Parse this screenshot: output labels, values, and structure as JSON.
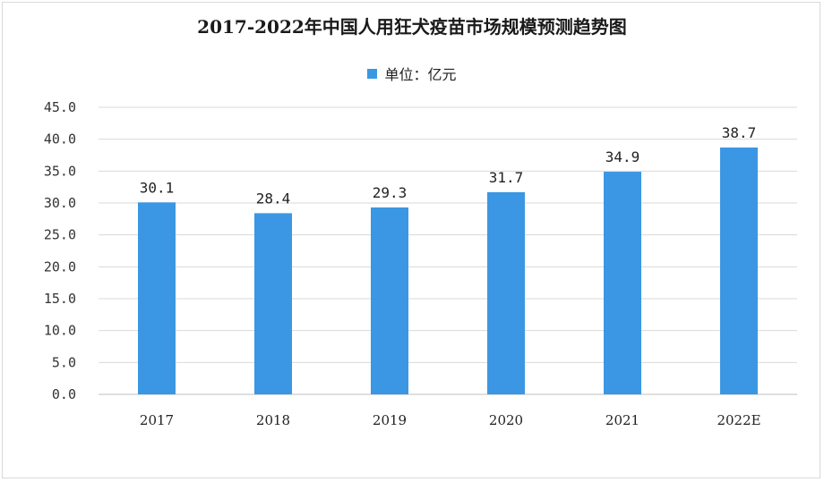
{
  "chart_data": {
    "type": "bar",
    "title": "2017-2022年中国人用狂犬疫苗市场规模预测趋势图",
    "legend": {
      "label": "单位：亿元",
      "position": "top"
    },
    "categories": [
      "2017",
      "2018",
      "2019",
      "2020",
      "2021",
      "2022E"
    ],
    "series": [
      {
        "name": "单位：亿元",
        "values": [
          30.1,
          28.4,
          29.3,
          31.7,
          34.9,
          38.7
        ]
      }
    ],
    "data_labels": [
      "30.1",
      "28.4",
      "29.3",
      "31.7",
      "34.9",
      "38.7"
    ],
    "yticks": [
      "0.0",
      "5.0",
      "10.0",
      "15.0",
      "20.0",
      "25.0",
      "30.0",
      "35.0",
      "40.0",
      "45.0"
    ],
    "ylim": [
      0,
      45
    ],
    "grid": true,
    "bar_color": "#3b97e3"
  }
}
